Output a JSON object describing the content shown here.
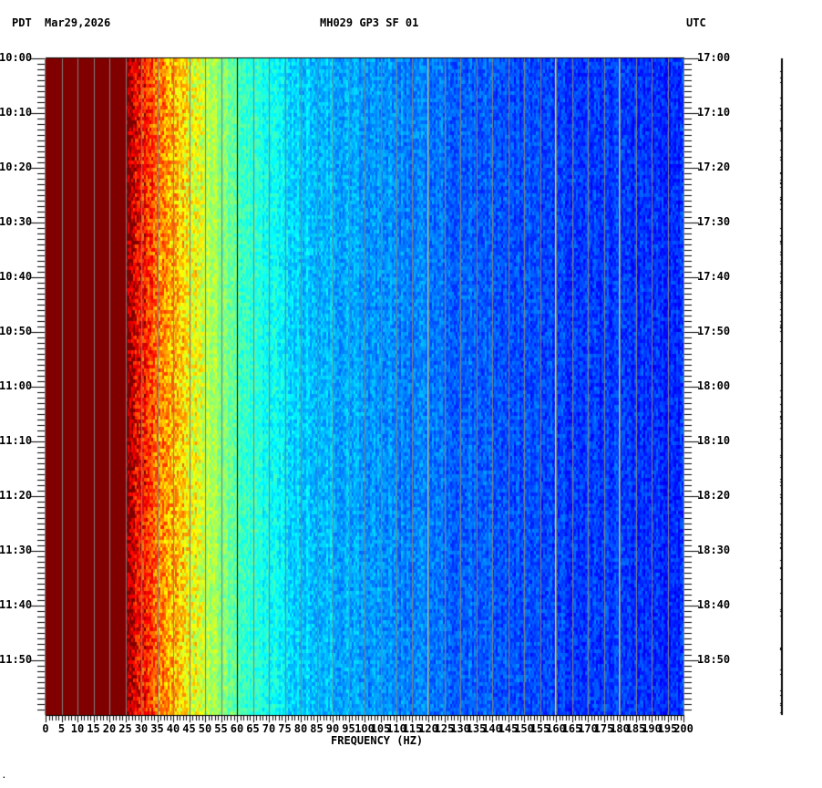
{
  "header": {
    "left_tz": "PDT",
    "date": "Mar29,2026",
    "station": "MH029 GP3 SF 01",
    "right_tz": "UTC"
  },
  "chart_data": {
    "type": "heatmap",
    "title": "MH029 GP3 SF 01",
    "xlabel": "FREQUENCY (HZ)",
    "xlim": [
      0,
      200
    ],
    "x_ticks": [
      0,
      5,
      10,
      15,
      20,
      25,
      30,
      35,
      40,
      45,
      50,
      55,
      60,
      65,
      70,
      75,
      80,
      85,
      90,
      95,
      100,
      105,
      110,
      115,
      120,
      125,
      130,
      135,
      140,
      145,
      150,
      155,
      160,
      165,
      170,
      175,
      180,
      185,
      190,
      195,
      200
    ],
    "y_left_label_tz": "PDT",
    "y_right_label_tz": "UTC",
    "y_left_ticks": [
      "10:00",
      "10:10",
      "10:20",
      "10:30",
      "10:40",
      "10:50",
      "11:00",
      "11:10",
      "11:20",
      "11:30",
      "11:40",
      "11:50"
    ],
    "y_right_ticks": [
      "17:00",
      "17:10",
      "17:20",
      "17:30",
      "17:40",
      "17:50",
      "18:00",
      "18:10",
      "18:20",
      "18:30",
      "18:40",
      "18:50"
    ],
    "duration_minutes": 120,
    "colormap": "jet",
    "intensity_profile": {
      "freq_hz": [
        0,
        25,
        28,
        33,
        38,
        45,
        52,
        60,
        70,
        80,
        100,
        120,
        150,
        200
      ],
      "level": [
        1.0,
        1.0,
        0.9,
        0.82,
        0.72,
        0.64,
        0.55,
        0.45,
        0.38,
        0.33,
        0.28,
        0.24,
        0.2,
        0.16
      ]
    },
    "narrowband_lines_hz": [
      60,
      120,
      160,
      180
    ],
    "grid_interval_hz": 5
  }
}
